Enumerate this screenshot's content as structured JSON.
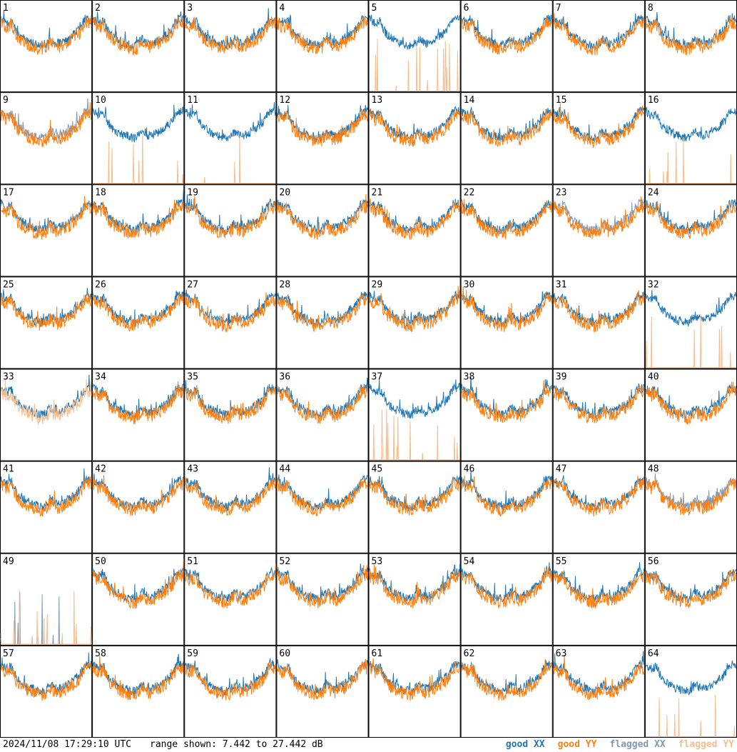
{
  "footer": {
    "timestamp": "2024/11/08 17:29:10 UTC",
    "range": "range shown: 7.442 to 27.442 dB"
  },
  "colors": {
    "good_xx": "#1f77b4",
    "good_yy": "#ff7f0e",
    "flagged_xx": "#7d9ab8",
    "flagged_yy": "#f7bd8d"
  },
  "chart_data": {
    "type": "line",
    "layout": "8x8 small multiples",
    "ylim": [
      7.442,
      27.442
    ],
    "yunit": "dB",
    "grid": false,
    "legend_placement": "bottom-right",
    "legend": [
      {
        "key": "good_xx",
        "label": "good XX"
      },
      {
        "key": "good_yy",
        "label": "good YY"
      },
      {
        "key": "flagged_xx",
        "label": "flagged XX"
      },
      {
        "key": "flagged_yy",
        "label": "flagged YY"
      }
    ],
    "panels": [
      {
        "label": "1",
        "xx": "good",
        "yy": "good"
      },
      {
        "label": "2",
        "xx": "good",
        "yy": "good"
      },
      {
        "label": "3",
        "xx": "good",
        "yy": "good"
      },
      {
        "label": "4",
        "xx": "good",
        "yy": "good"
      },
      {
        "label": "5",
        "xx": "good",
        "yy": "flagged"
      },
      {
        "label": "6",
        "xx": "good",
        "yy": "good"
      },
      {
        "label": "7",
        "xx": "good",
        "yy": "good"
      },
      {
        "label": "8",
        "xx": "good",
        "yy": "good"
      },
      {
        "label": "9",
        "xx": "flagged",
        "yy": "good"
      },
      {
        "label": "10",
        "xx": "good",
        "yy": "flagged"
      },
      {
        "label": "11",
        "xx": "good",
        "yy": "flagged"
      },
      {
        "label": "12",
        "xx": "good",
        "yy": "good"
      },
      {
        "label": "13",
        "xx": "good",
        "yy": "good"
      },
      {
        "label": "14",
        "xx": "good",
        "yy": "good"
      },
      {
        "label": "15",
        "xx": "good",
        "yy": "good"
      },
      {
        "label": "16",
        "xx": "good",
        "yy": "flagged"
      },
      {
        "label": "17",
        "xx": "good",
        "yy": "good"
      },
      {
        "label": "18",
        "xx": "good",
        "yy": "good"
      },
      {
        "label": "19",
        "xx": "good",
        "yy": "good"
      },
      {
        "label": "20",
        "xx": "good",
        "yy": "good"
      },
      {
        "label": "21",
        "xx": "good",
        "yy": "good"
      },
      {
        "label": "22",
        "xx": "good",
        "yy": "good"
      },
      {
        "label": "23",
        "xx": "flagged",
        "yy": "good"
      },
      {
        "label": "24",
        "xx": "good",
        "yy": "good"
      },
      {
        "label": "25",
        "xx": "good",
        "yy": "good"
      },
      {
        "label": "26",
        "xx": "good",
        "yy": "good"
      },
      {
        "label": "27",
        "xx": "good",
        "yy": "good"
      },
      {
        "label": "28",
        "xx": "good",
        "yy": "good"
      },
      {
        "label": "29",
        "xx": "good",
        "yy": "good"
      },
      {
        "label": "30",
        "xx": "good",
        "yy": "good"
      },
      {
        "label": "31",
        "xx": "good",
        "yy": "good"
      },
      {
        "label": "32",
        "xx": "good",
        "yy": "flagged"
      },
      {
        "label": "33",
        "xx": "good",
        "yy": "flagged"
      },
      {
        "label": "34",
        "xx": "good",
        "yy": "good"
      },
      {
        "label": "35",
        "xx": "good",
        "yy": "good"
      },
      {
        "label": "36",
        "xx": "good",
        "yy": "good"
      },
      {
        "label": "37",
        "xx": "good",
        "yy": "flagged"
      },
      {
        "label": "38",
        "xx": "good",
        "yy": "good"
      },
      {
        "label": "39",
        "xx": "good",
        "yy": "good"
      },
      {
        "label": "40",
        "xx": "good",
        "yy": "good"
      },
      {
        "label": "41",
        "xx": "good",
        "yy": "good"
      },
      {
        "label": "42",
        "xx": "good",
        "yy": "good"
      },
      {
        "label": "43",
        "xx": "good",
        "yy": "good"
      },
      {
        "label": "44",
        "xx": "good",
        "yy": "good"
      },
      {
        "label": "45",
        "xx": "good",
        "yy": "good"
      },
      {
        "label": "46",
        "xx": "good",
        "yy": "good"
      },
      {
        "label": "47",
        "xx": "good",
        "yy": "good"
      },
      {
        "label": "48",
        "xx": "flagged",
        "yy": "good"
      },
      {
        "label": "49",
        "xx": "flagged",
        "yy": "flagged"
      },
      {
        "label": "50",
        "xx": "good",
        "yy": "good"
      },
      {
        "label": "51",
        "xx": "good",
        "yy": "good"
      },
      {
        "label": "52",
        "xx": "good",
        "yy": "good"
      },
      {
        "label": "53",
        "xx": "good",
        "yy": "good"
      },
      {
        "label": "54",
        "xx": "good",
        "yy": "good"
      },
      {
        "label": "55",
        "xx": "good",
        "yy": "good"
      },
      {
        "label": "56",
        "xx": "good",
        "yy": "good"
      },
      {
        "label": "57",
        "xx": "good",
        "yy": "good"
      },
      {
        "label": "58",
        "xx": "good",
        "yy": "good"
      },
      {
        "label": "59",
        "xx": "good",
        "yy": "good"
      },
      {
        "label": "60",
        "xx": "good",
        "yy": "good"
      },
      {
        "label": "61",
        "xx": "good",
        "yy": "good"
      },
      {
        "label": "62",
        "xx": "good",
        "yy": "good"
      },
      {
        "label": "63",
        "xx": "good",
        "yy": "good"
      },
      {
        "label": "64",
        "xx": "good",
        "yy": "flagged"
      }
    ]
  }
}
